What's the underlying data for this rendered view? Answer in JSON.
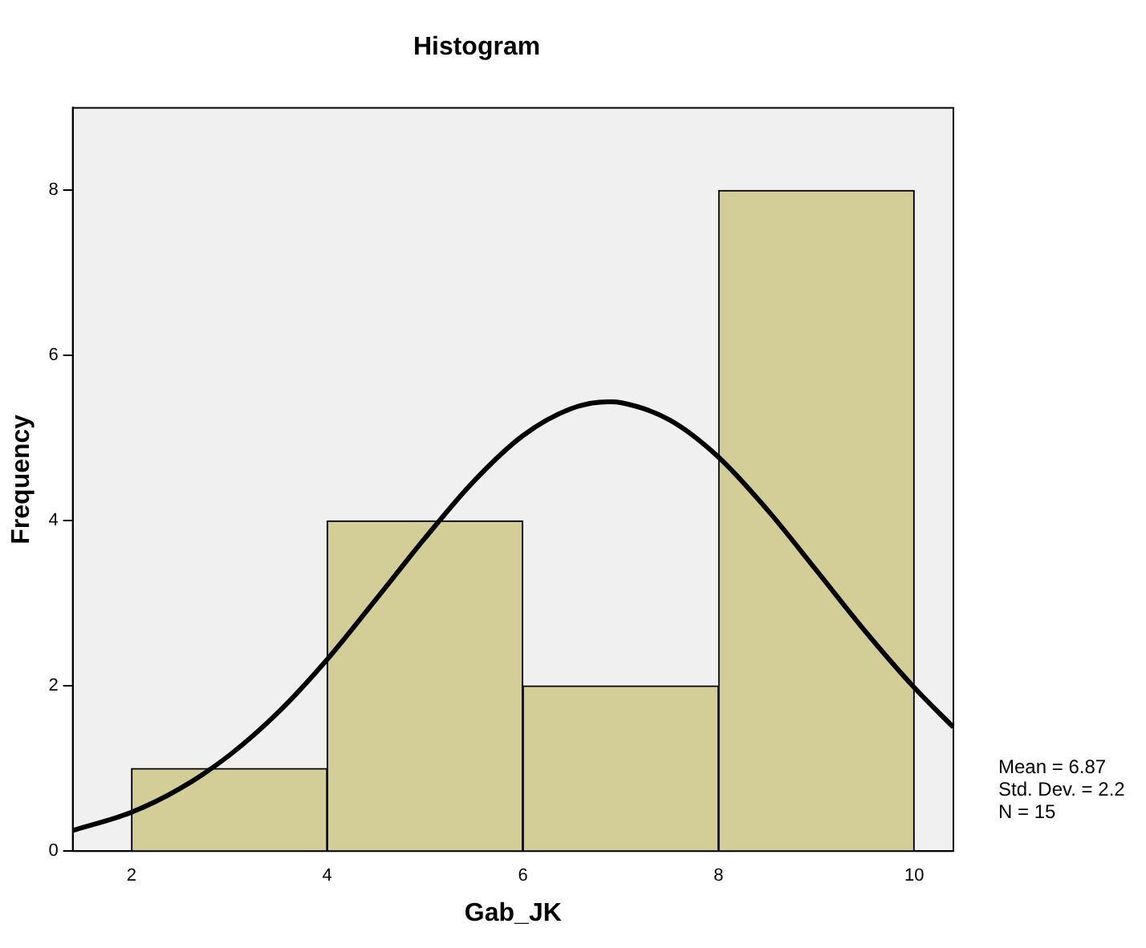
{
  "chart_data": {
    "type": "histogram",
    "title": "Histogram",
    "xlabel": "Gab_JK",
    "ylabel": "Frequency",
    "bins": [
      2,
      4,
      6,
      8,
      10
    ],
    "values": [
      1,
      4,
      2,
      8
    ],
    "color": "#d3ce97",
    "series": [
      {
        "type": "line",
        "color": "#000000",
        "x": [
          1.4,
          2,
          2.5,
          3,
          3.5,
          4,
          4.5,
          5,
          5.5,
          6,
          6.5,
          6.87,
          7,
          7.5,
          8,
          8.5,
          9,
          9.5,
          10,
          10.4
        ],
        "values": [
          0.25,
          0.47,
          0.76,
          1.16,
          1.68,
          2.32,
          3.05,
          3.79,
          4.48,
          5.03,
          5.36,
          5.44,
          5.43,
          5.22,
          4.77,
          4.13,
          3.4,
          2.66,
          1.98,
          1.5
        ]
      }
    ],
    "xlim": [
      1.4,
      10.4
    ],
    "ylim": [
      0,
      9
    ],
    "xticks": [
      2,
      4,
      6,
      8,
      10
    ],
    "yticks": [
      0,
      2,
      4,
      6,
      8
    ],
    "grid": false,
    "legend": false,
    "annotations": [
      "Mean = 6.87",
      "Std. Dev. = 2.2",
      "N = 15"
    ]
  }
}
